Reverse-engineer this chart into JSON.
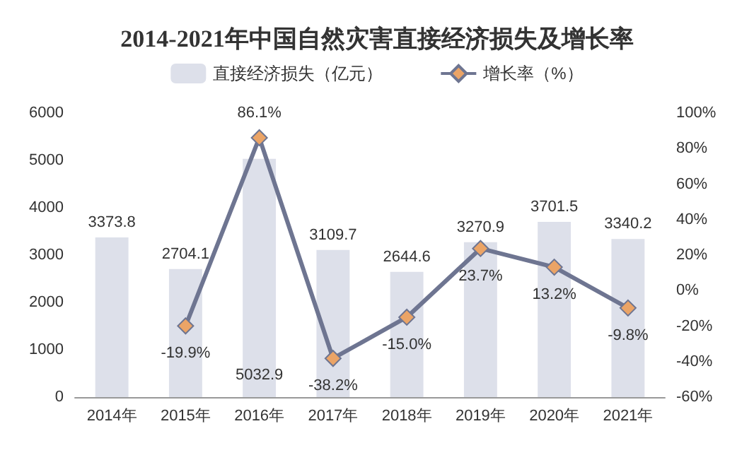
{
  "chart_data": {
    "type": "bar",
    "title": "2014-2021年中国自然灾害直接经济损失及增长率",
    "categories": [
      "2014年",
      "2015年",
      "2016年",
      "2017年",
      "2018年",
      "2019年",
      "2020年",
      "2021年"
    ],
    "series": [
      {
        "name": "直接经济损失（亿元）",
        "color": "#dde0ea",
        "values": [
          3373.8,
          2704.1,
          5032.9,
          3109.7,
          2644.6,
          3270.9,
          3701.5,
          3340.2
        ],
        "value_labels": [
          "3373.8",
          "2704.1",
          "5032.9",
          "3109.7",
          "2644.6",
          "3270.9",
          "3701.5",
          "3340.2"
        ]
      },
      {
        "name": "增长率（%）",
        "type": "line",
        "axis": "y2",
        "color": "#6e7591",
        "values": [
          null,
          -19.9,
          86.1,
          -38.2,
          -15.0,
          23.7,
          13.2,
          -9.8
        ],
        "value_labels": [
          null,
          "-19.9%",
          "86.1%",
          "-38.2%",
          "-15.0%",
          "23.7%",
          "13.2%",
          "-9.8%"
        ]
      }
    ],
    "ylim": [
      0,
      6000
    ],
    "yticks": [
      0,
      1000,
      2000,
      3000,
      4000,
      5000,
      6000
    ],
    "y2lim": [
      -60,
      100
    ],
    "y2ticks": [
      {
        "value": -60,
        "label": "-60%"
      },
      {
        "value": -40,
        "label": "-40%"
      },
      {
        "value": -20,
        "label": "-20%"
      },
      {
        "value": 0,
        "label": "0%"
      },
      {
        "value": 20,
        "label": "20%"
      },
      {
        "value": 40,
        "label": "40%"
      },
      {
        "value": 60,
        "label": "60%"
      },
      {
        "value": 80,
        "label": "80%"
      },
      {
        "value": 100,
        "label": "100%"
      }
    ],
    "legend": "top",
    "grid": false,
    "marker": "diamond",
    "line_style": "solid"
  }
}
